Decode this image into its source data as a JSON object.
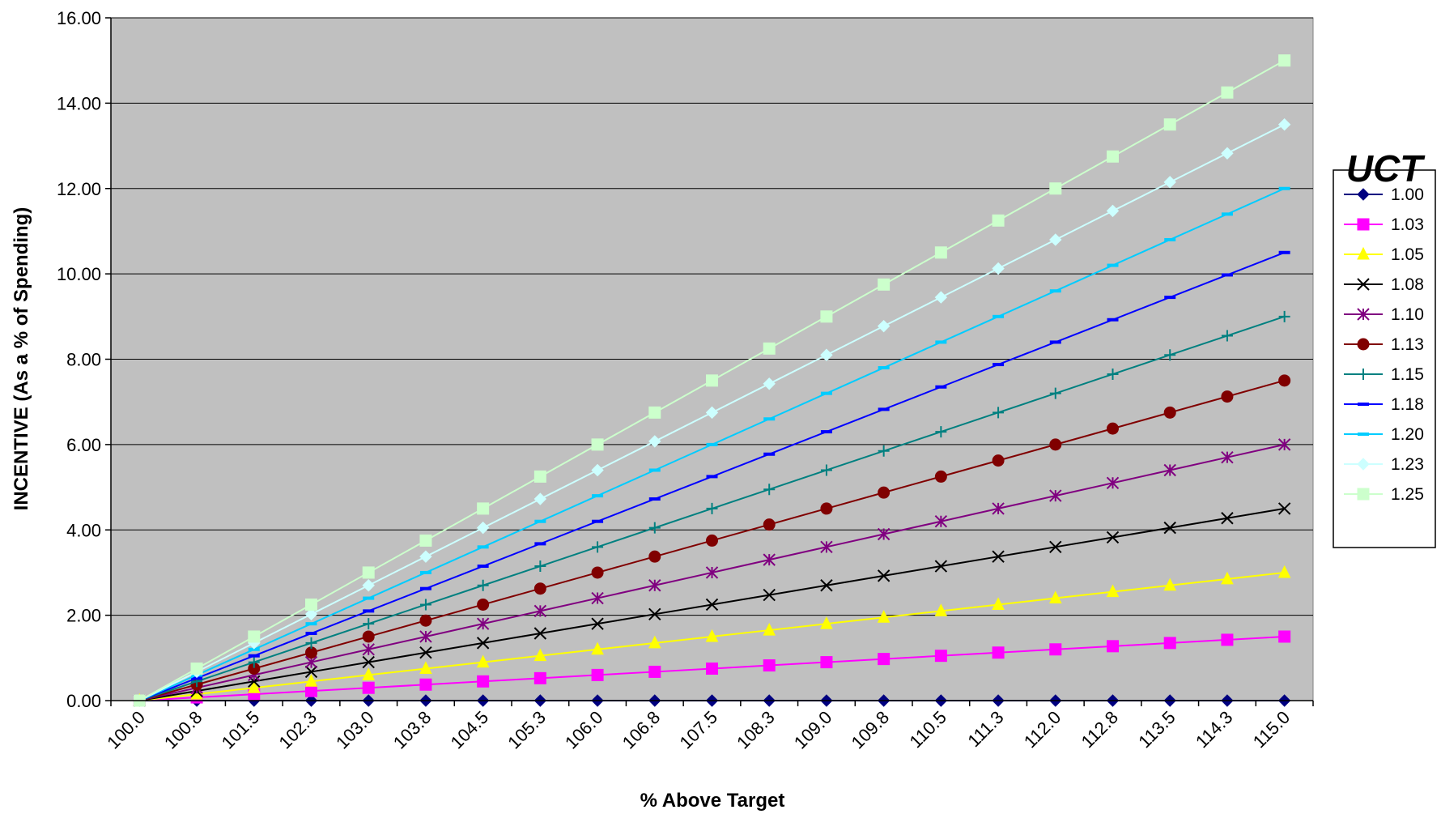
{
  "chart_data": {
    "type": "line",
    "title": "",
    "xlabel": "% Above Target",
    "ylabel": "INCENTIVE (As a % of Spending)",
    "ylim": [
      0,
      16
    ],
    "yticks": [
      "0.00",
      "2.00",
      "4.00",
      "6.00",
      "8.00",
      "10.00",
      "12.00",
      "14.00",
      "16.00"
    ],
    "grid": true,
    "plot_background": "#C0C0C0",
    "legend_title": "UCT",
    "legend_position": "right",
    "categories": [
      "100.0",
      "100.8",
      "101.5",
      "102.3",
      "103.0",
      "103.8",
      "104.5",
      "105.3",
      "106.0",
      "106.8",
      "107.5",
      "108.3",
      "109.0",
      "109.8",
      "110.5",
      "111.3",
      "112.0",
      "112.8",
      "113.5",
      "114.3",
      "115.0"
    ],
    "series": [
      {
        "name": "1.00",
        "color": "#000080",
        "marker": "diamond",
        "values": [
          0,
          0,
          0,
          0,
          0,
          0,
          0,
          0,
          0,
          0,
          0,
          0,
          0,
          0,
          0,
          0,
          0,
          0,
          0,
          0,
          0
        ]
      },
      {
        "name": "1.03",
        "color": "#FF00FF",
        "marker": "square",
        "values": [
          0,
          0.075,
          0.15,
          0.225,
          0.3,
          0.375,
          0.45,
          0.525,
          0.6,
          0.675,
          0.75,
          0.825,
          0.9,
          0.975,
          1.05,
          1.125,
          1.2,
          1.275,
          1.35,
          1.425,
          1.5
        ]
      },
      {
        "name": "1.05",
        "color": "#FFFF00",
        "marker": "triangle",
        "values": [
          0,
          0.15,
          0.3,
          0.45,
          0.6,
          0.75,
          0.9,
          1.05,
          1.2,
          1.35,
          1.5,
          1.65,
          1.8,
          1.95,
          2.1,
          2.25,
          2.4,
          2.55,
          2.7,
          2.85,
          3.0
        ]
      },
      {
        "name": "1.08",
        "color": "#000000",
        "marker": "x",
        "values": [
          0,
          0.225,
          0.45,
          0.675,
          0.9,
          1.125,
          1.35,
          1.575,
          1.8,
          2.025,
          2.25,
          2.475,
          2.7,
          2.925,
          3.15,
          3.375,
          3.6,
          3.825,
          4.05,
          4.275,
          4.5
        ]
      },
      {
        "name": "1.10",
        "color": "#800080",
        "marker": "star",
        "values": [
          0,
          0.3,
          0.6,
          0.9,
          1.2,
          1.5,
          1.8,
          2.1,
          2.4,
          2.7,
          3.0,
          3.3,
          3.6,
          3.9,
          4.2,
          4.5,
          4.8,
          5.1,
          5.4,
          5.7,
          6.0
        ]
      },
      {
        "name": "1.13",
        "color": "#800000",
        "marker": "circle",
        "values": [
          0,
          0.375,
          0.75,
          1.125,
          1.5,
          1.875,
          2.25,
          2.625,
          3.0,
          3.375,
          3.75,
          4.125,
          4.5,
          4.875,
          5.25,
          5.625,
          6.0,
          6.375,
          6.75,
          7.125,
          7.5
        ]
      },
      {
        "name": "1.15",
        "color": "#008080",
        "marker": "plus",
        "values": [
          0,
          0.45,
          0.9,
          1.35,
          1.8,
          2.25,
          2.7,
          3.15,
          3.6,
          4.05,
          4.5,
          4.95,
          5.4,
          5.85,
          6.3,
          6.75,
          7.2,
          7.65,
          8.1,
          8.55,
          9.0
        ]
      },
      {
        "name": "1.18",
        "color": "#0000FF",
        "marker": "dash",
        "values": [
          0,
          0.525,
          1.05,
          1.575,
          2.1,
          2.625,
          3.15,
          3.675,
          4.2,
          4.725,
          5.25,
          5.775,
          6.3,
          6.825,
          7.35,
          7.875,
          8.4,
          8.925,
          9.45,
          9.975,
          10.5
        ]
      },
      {
        "name": "1.20",
        "color": "#00CCFF",
        "marker": "dash",
        "values": [
          0,
          0.6,
          1.2,
          1.8,
          2.4,
          3.0,
          3.6,
          4.2,
          4.8,
          5.4,
          6.0,
          6.6,
          7.2,
          7.8,
          8.4,
          9.0,
          9.6,
          10.2,
          10.8,
          11.4,
          12.0
        ]
      },
      {
        "name": "1.23",
        "color": "#CCFFFF",
        "marker": "diamond",
        "values": [
          0,
          0.675,
          1.35,
          2.025,
          2.7,
          3.375,
          4.05,
          4.725,
          5.4,
          6.075,
          6.75,
          7.425,
          8.1,
          8.775,
          9.45,
          10.125,
          10.8,
          11.475,
          12.15,
          12.825,
          13.5
        ]
      },
      {
        "name": "1.25",
        "color": "#CCFFCC",
        "marker": "square",
        "values": [
          0,
          0.75,
          1.5,
          2.25,
          3.0,
          3.75,
          4.5,
          5.25,
          6.0,
          6.75,
          7.5,
          8.25,
          9.0,
          9.75,
          10.5,
          11.25,
          12.0,
          12.75,
          13.5,
          14.25,
          15.0
        ]
      }
    ]
  }
}
